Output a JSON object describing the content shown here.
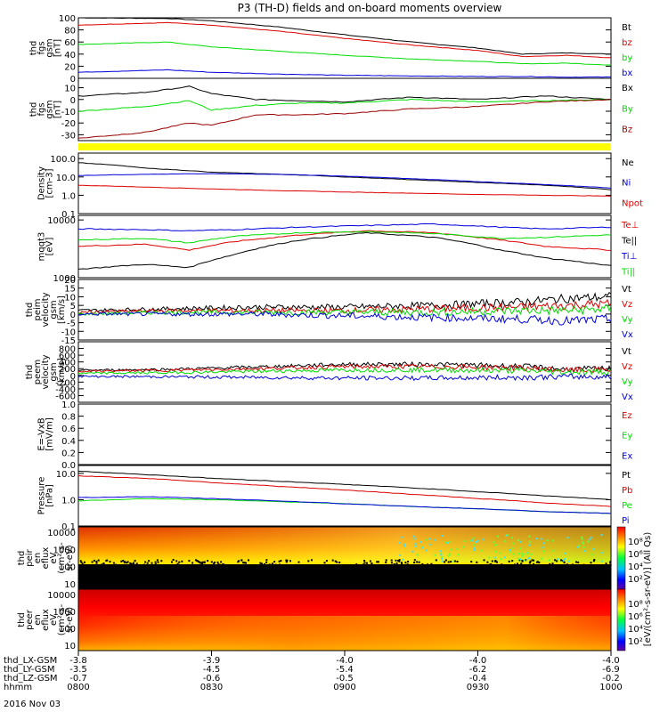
{
  "title": "P3 (TH-D) fields and on-board moments overview",
  "date": "2016 Nov 03",
  "time_axis": {
    "ticks": [
      "0800",
      "0830",
      "0900",
      "0930",
      "1000"
    ],
    "start_min": 0,
    "end_min": 120
  },
  "ephemeris": {
    "labels": [
      "thd_LX-GSM",
      "thd_LY-GSM",
      "thd_LZ-GSM",
      "hhmm"
    ],
    "rows": [
      [
        "-3.8",
        "-3.9",
        "-4.0",
        "-4.0",
        "-4.0"
      ],
      [
        "-3.5",
        "-4.5",
        "-5.4",
        "-6.2",
        "-6.9"
      ],
      [
        "-0.7",
        "-0.6",
        "-0.5",
        "-0.4",
        "-0.2"
      ]
    ]
  },
  "colors": {
    "black": "#000000",
    "red": "#dd0000",
    "green": "#00dd00",
    "blue": "#0000dd",
    "darkred": "#990000",
    "yellow": "#ffff00"
  },
  "colorbar": {
    "label": "[eV/(cm²-s-sr-eV)] (All Qs)",
    "ticks_top": [
      "10⁸",
      "10⁶",
      "10⁴",
      "10²"
    ],
    "ticks_bottom": [
      "10⁸",
      "10⁶",
      "10⁴",
      "10²"
    ]
  },
  "chart_data": [
    {
      "type": "line",
      "panel": "fgs_gsm_mag",
      "ylabel": [
        "thd",
        "fgs",
        "gsm",
        "[nT]"
      ],
      "ylim": [
        0,
        100
      ],
      "yticks": [
        "100",
        "80",
        "60",
        "40",
        "20",
        "0"
      ],
      "series": [
        {
          "name": "Bt",
          "color": "#000000",
          "x": [
            0,
            20,
            30,
            45,
            60,
            75,
            90,
            100,
            110,
            120
          ],
          "y": [
            100,
            99,
            95,
            85,
            72,
            60,
            50,
            40,
            42,
            40
          ]
        },
        {
          "name": "bz",
          "color": "#dd0000",
          "x": [
            0,
            20,
            30,
            45,
            60,
            75,
            90,
            100,
            110,
            120
          ],
          "y": [
            88,
            92,
            88,
            78,
            66,
            55,
            46,
            36,
            38,
            34
          ]
        },
        {
          "name": "by",
          "color": "#00dd00",
          "x": [
            0,
            20,
            30,
            45,
            60,
            75,
            90,
            100,
            110,
            120
          ],
          "y": [
            56,
            60,
            52,
            45,
            38,
            32,
            28,
            24,
            25,
            22
          ]
        },
        {
          "name": "bx",
          "color": "#0000dd",
          "x": [
            0,
            20,
            30,
            45,
            60,
            75,
            90,
            100,
            110,
            120
          ],
          "y": [
            10,
            14,
            10,
            7,
            5,
            4,
            3,
            3,
            2,
            2
          ]
        }
      ]
    },
    {
      "type": "line",
      "panel": "fgs_gsm",
      "ylabel": [
        "thd",
        "fgs",
        "gsm",
        "[nT]"
      ],
      "ylim": [
        -35,
        18
      ],
      "yticks": [
        "10",
        "0",
        "-10",
        "-20",
        "-30"
      ],
      "series": [
        {
          "name": "Bx",
          "color": "#000000",
          "x": [
            0,
            15,
            25,
            30,
            40,
            50,
            60,
            75,
            90,
            105,
            120
          ],
          "y": [
            3,
            6,
            11,
            5,
            0,
            -1,
            -2,
            2,
            0,
            3,
            0
          ]
        },
        {
          "name": "By",
          "color": "#00dd00",
          "x": [
            0,
            15,
            25,
            30,
            40,
            50,
            60,
            75,
            90,
            105,
            120
          ],
          "y": [
            -10,
            -6,
            -1,
            -9,
            -5,
            -3,
            -3,
            0,
            -2,
            -1,
            0
          ]
        },
        {
          "name": "Bz",
          "color": "#990000",
          "x": [
            0,
            15,
            25,
            30,
            40,
            50,
            60,
            75,
            90,
            105,
            120
          ],
          "y": [
            -33,
            -28,
            -20,
            -22,
            -13,
            -13,
            -12,
            -8,
            -6,
            -2,
            0
          ]
        }
      ]
    },
    {
      "type": "line",
      "panel": "density",
      "log": true,
      "ylabel": [
        "Density",
        "[cm-3]"
      ],
      "ylim": [
        0.1,
        200
      ],
      "yticks": [
        "100.0",
        "10.0",
        "1.0",
        "0.1"
      ],
      "series": [
        {
          "name": "Ne",
          "color": "#000000",
          "x": [
            0,
            15,
            30,
            45,
            60,
            75,
            90,
            105,
            120
          ],
          "y": [
            60,
            30,
            18,
            14,
            10,
            7,
            5,
            3.5,
            2
          ]
        },
        {
          "name": "Ni",
          "color": "#0000dd",
          "x": [
            0,
            15,
            30,
            45,
            60,
            75,
            90,
            105,
            120
          ],
          "y": [
            12,
            14,
            15,
            14,
            11,
            8,
            5.5,
            3.8,
            2.5
          ]
        },
        {
          "name": "Npot",
          "color": "#dd0000",
          "x": [
            0,
            15,
            30,
            45,
            60,
            75,
            90,
            105,
            120
          ],
          "y": [
            3.5,
            2.8,
            2.2,
            1.8,
            1.5,
            1.3,
            1.1,
            1.0,
            0.9
          ]
        }
      ]
    },
    {
      "type": "line",
      "panel": "temperature",
      "log": true,
      "ylabel": [
        "mqqt3",
        "[eV]"
      ],
      "ylim": [
        1000,
        12000
      ],
      "yticks": [
        "10000",
        "1000"
      ],
      "series": [
        {
          "name": "Te⊥",
          "color": "#dd0000",
          "x": [
            0,
            15,
            25,
            35,
            50,
            65,
            80,
            95,
            105,
            120
          ],
          "y": [
            3500,
            3800,
            3000,
            4200,
            5500,
            6500,
            6000,
            4500,
            3500,
            3000
          ]
        },
        {
          "name": "Te||",
          "color": "#000000",
          "x": [
            0,
            15,
            25,
            35,
            50,
            65,
            80,
            95,
            105,
            120
          ],
          "y": [
            1400,
            1700,
            1500,
            2500,
            4500,
            6000,
            5000,
            3000,
            2200,
            1600
          ]
        },
        {
          "name": "Ti⊥",
          "color": "#0000dd",
          "x": [
            0,
            15,
            25,
            35,
            50,
            65,
            80,
            95,
            105,
            120
          ],
          "y": [
            7000,
            6800,
            6500,
            6800,
            7500,
            8000,
            8500,
            7500,
            7000,
            7500
          ]
        },
        {
          "name": "Ti||",
          "color": "#00dd00",
          "x": [
            0,
            15,
            25,
            35,
            50,
            65,
            80,
            95,
            105,
            120
          ],
          "y": [
            4500,
            4800,
            4000,
            5200,
            6000,
            6300,
            5800,
            4800,
            5000,
            5500
          ]
        }
      ]
    },
    {
      "type": "line",
      "panel": "peim_velocity",
      "ylabel": [
        "thd",
        "peim",
        "velocity",
        "gsm",
        "[km/s]"
      ],
      "ylim": [
        -15,
        20
      ],
      "yticks": [
        "20",
        "15",
        "10",
        "5",
        "0",
        "-5",
        "-10",
        "-15"
      ],
      "series": [
        {
          "name": "Vt",
          "color": "#000000",
          "x": [
            0,
            20,
            40,
            60,
            80,
            100,
            110,
            120
          ],
          "y": [
            2,
            3,
            4,
            4,
            5,
            7,
            9,
            10
          ]
        },
        {
          "name": "Vz",
          "color": "#dd0000",
          "x": [
            0,
            20,
            40,
            60,
            80,
            100,
            110,
            120
          ],
          "y": [
            1,
            2,
            2,
            2,
            3,
            4,
            5,
            6
          ]
        },
        {
          "name": "Vy",
          "color": "#00dd00",
          "x": [
            0,
            20,
            40,
            60,
            80,
            100,
            110,
            120
          ],
          "y": [
            0,
            1,
            1,
            1,
            1,
            2,
            2,
            3
          ]
        },
        {
          "name": "Vx",
          "color": "#0000dd",
          "x": [
            0,
            20,
            40,
            60,
            80,
            100,
            110,
            120
          ],
          "y": [
            0,
            0,
            0,
            -1,
            -2,
            -3,
            -4,
            -3
          ]
        }
      ]
    },
    {
      "type": "line",
      "panel": "peem_velocity",
      "ylabel": [
        "thd",
        "peem",
        "velocity",
        "gsm",
        "[km/s]"
      ],
      "ylim": [
        -800,
        1000
      ],
      "yticks": [
        "800",
        "600",
        "400",
        "200",
        "0",
        "-200",
        "-400",
        "-600"
      ],
      "series": [
        {
          "name": "Vt",
          "color": "#000000",
          "x": [
            0,
            20,
            40,
            60,
            80,
            100,
            110,
            120
          ],
          "y": [
            150,
            180,
            250,
            330,
            330,
            270,
            180,
            200
          ]
        },
        {
          "name": "Vz",
          "color": "#dd0000",
          "x": [
            0,
            20,
            40,
            60,
            80,
            100,
            110,
            120
          ],
          "y": [
            120,
            150,
            200,
            260,
            260,
            220,
            150,
            170
          ]
        },
        {
          "name": "Vy",
          "color": "#00dd00",
          "x": [
            0,
            20,
            40,
            60,
            80,
            100,
            110,
            120
          ],
          "y": [
            60,
            80,
            120,
            160,
            160,
            140,
            100,
            110
          ]
        },
        {
          "name": "Vx",
          "color": "#0000dd",
          "x": [
            0,
            20,
            40,
            60,
            80,
            100,
            110,
            120
          ],
          "y": [
            -30,
            -40,
            -60,
            -80,
            -80,
            -60,
            -40,
            -40
          ]
        }
      ]
    },
    {
      "type": "line",
      "panel": "efield",
      "ylabel": [
        "E=-VxB",
        "[mV/m]"
      ],
      "ylim": [
        0,
        1
      ],
      "yticks": [
        "1.0",
        "0.8",
        "0.6",
        "0.4",
        "0.2",
        "0.0"
      ],
      "series": [
        {
          "name": "Ez",
          "color": "#dd0000",
          "x": [],
          "y": []
        },
        {
          "name": "Ey",
          "color": "#00dd00",
          "x": [],
          "y": []
        },
        {
          "name": "Ex",
          "color": "#0000dd",
          "x": [],
          "y": []
        }
      ]
    },
    {
      "type": "line",
      "panel": "pressure",
      "log": true,
      "ylabel": [
        "Pressure",
        "[nPa]"
      ],
      "ylim": [
        0.1,
        20
      ],
      "yticks": [
        "10.0",
        "1.0",
        "0.1"
      ],
      "series": [
        {
          "name": "Pt",
          "color": "#000000",
          "x": [
            0,
            15,
            30,
            45,
            60,
            75,
            90,
            105,
            120
          ],
          "y": [
            12,
            9,
            6.5,
            5,
            3.8,
            2.8,
            2,
            1.4,
            1
          ]
        },
        {
          "name": "Pb",
          "color": "#dd0000",
          "x": [
            0,
            15,
            30,
            45,
            60,
            75,
            90,
            105,
            120
          ],
          "y": [
            8,
            6.5,
            4.5,
            3.2,
            2.3,
            1.6,
            1.1,
            0.75,
            0.55
          ]
        },
        {
          "name": "Pe",
          "color": "#00dd00",
          "x": [
            0,
            15,
            30,
            45,
            60,
            75,
            90,
            105,
            120
          ],
          "y": [
            0.9,
            1.1,
            1.0,
            0.85,
            0.7,
            0.55,
            0.45,
            0.35,
            0.3
          ]
        },
        {
          "name": "Pi",
          "color": "#0000dd",
          "x": [
            0,
            15,
            30,
            45,
            60,
            75,
            90,
            105,
            120
          ],
          "y": [
            1.2,
            1.3,
            1.1,
            0.9,
            0.7,
            0.55,
            0.45,
            0.35,
            0.3
          ]
        }
      ]
    },
    {
      "type": "heatmap",
      "panel": "peir_en_eflux",
      "ylabel": [
        "thd",
        "peir",
        "en",
        "eflux",
        "eV",
        "(cm²-s-",
        "sr-eV)"
      ],
      "yticks": [
        "10000",
        "1000",
        "100",
        "10"
      ]
    },
    {
      "type": "heatmap",
      "panel": "peer_en_eflux",
      "ylabel": [
        "thd",
        "peer",
        "en",
        "eflux",
        "eV",
        "(cm²-s-",
        "sr-eV)"
      ],
      "yticks": [
        "10000",
        "1000",
        "100",
        "10"
      ]
    }
  ]
}
